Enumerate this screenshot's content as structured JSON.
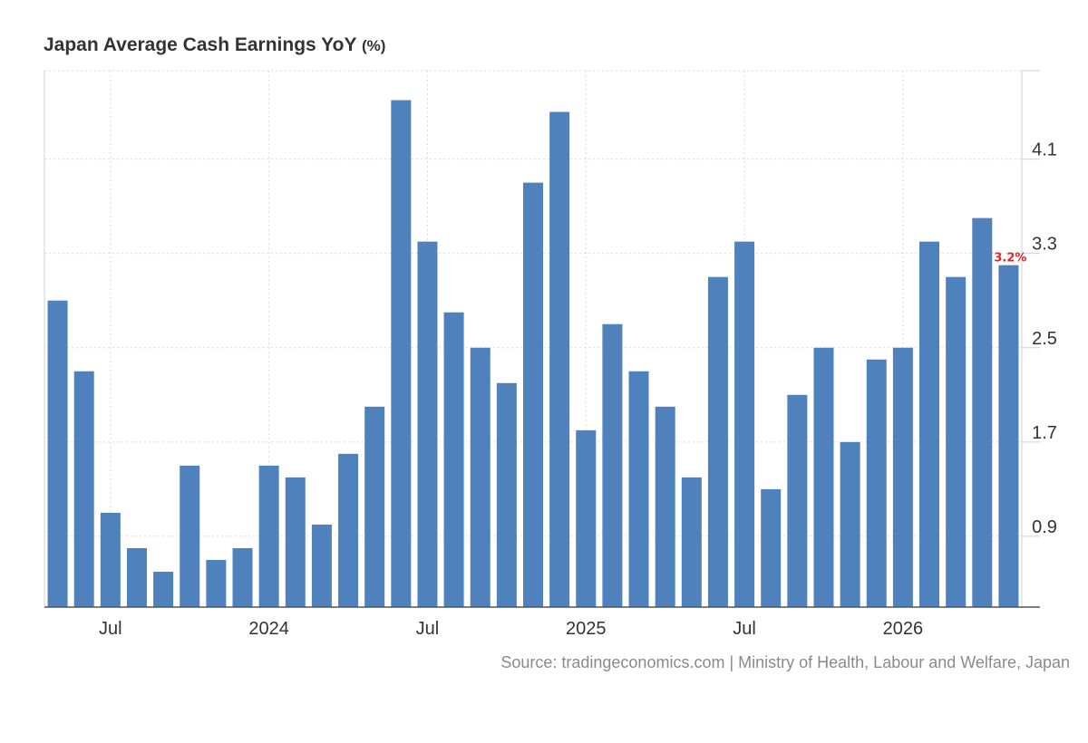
{
  "chart_data": {
    "type": "bar",
    "title": "Japan Average Cash Earnings YoY",
    "unit": "(%)",
    "source": "Source: tradingeconomics.com | Ministry of Health, Labour and Welfare, Japan",
    "x": [
      "2023-05",
      "2023-06",
      "2023-07",
      "2023-08",
      "2023-09",
      "2023-10",
      "2023-11",
      "2023-12",
      "2024-01",
      "2024-02",
      "2024-03",
      "2024-04",
      "2024-05",
      "2024-06",
      "2024-07",
      "2024-08",
      "2024-09",
      "2024-10",
      "2024-11",
      "2024-12",
      "2025-01",
      "2025-02",
      "2025-03",
      "2025-04",
      "2025-05",
      "2025-06",
      "2025-07",
      "2025-08",
      "2025-09",
      "2025-10",
      "2025-11",
      "2025-12",
      "2026-01",
      "2026-02",
      "2026-03",
      "2026-04",
      "2026-05"
    ],
    "values": [
      2.9,
      2.3,
      1.1,
      0.8,
      0.6,
      1.5,
      0.7,
      0.8,
      1.5,
      1.4,
      1.0,
      1.6,
      2.0,
      4.6,
      3.4,
      2.8,
      2.5,
      2.2,
      3.9,
      4.5,
      1.8,
      2.7,
      2.3,
      2.0,
      1.4,
      3.1,
      3.4,
      1.3,
      2.1,
      2.5,
      1.7,
      2.4,
      2.5,
      3.4,
      3.1,
      3.6,
      3.2
    ],
    "x_tick_labels": [
      {
        "at": "2023-07",
        "label": "Jul"
      },
      {
        "at": "2024-01",
        "label": "2024"
      },
      {
        "at": "2024-07",
        "label": "Jul"
      },
      {
        "at": "2025-01",
        "label": "2025"
      },
      {
        "at": "2025-07",
        "label": "Jul"
      },
      {
        "at": "2026-01",
        "label": "2026"
      }
    ],
    "y_ticks": [
      0.9,
      1.7,
      2.5,
      3.3,
      4.1
    ],
    "ylim": [
      0.3,
      4.85
    ],
    "y_axis_side": "right",
    "grid": true,
    "last_value_label": "3.2%",
    "colors": {
      "bar": "#4f81bd",
      "last_label": "#e8212a",
      "grid": "#d9d9d9",
      "axis": "#d0d0d0"
    }
  }
}
